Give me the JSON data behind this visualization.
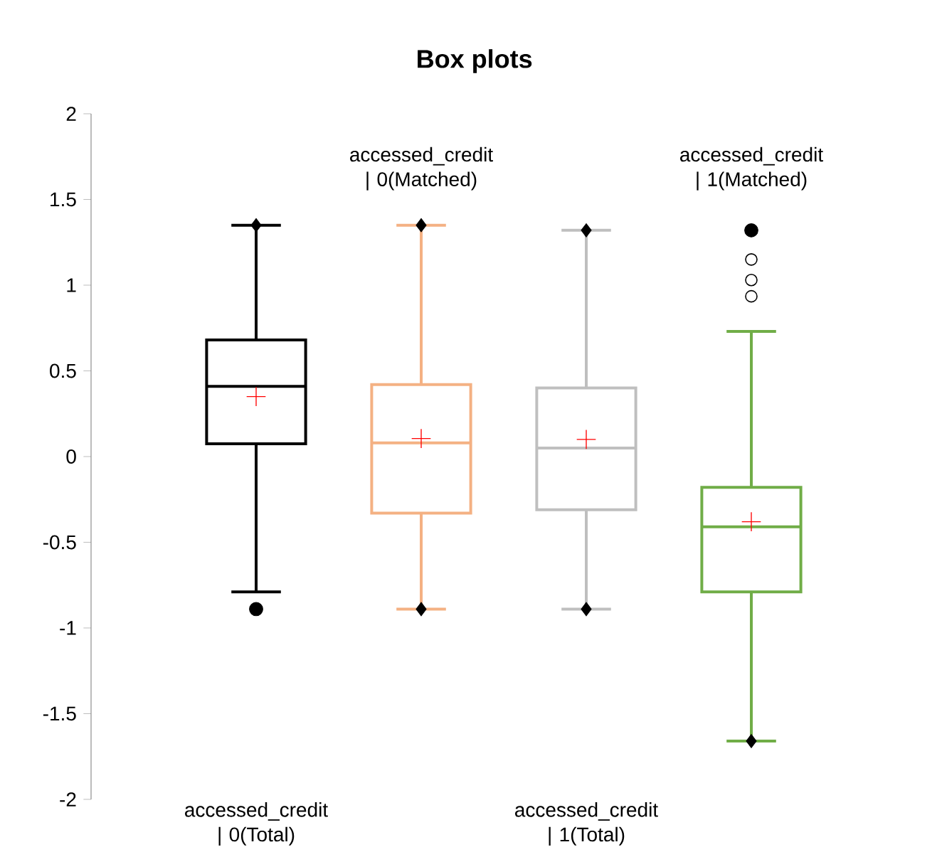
{
  "chart_data": {
    "type": "box",
    "title": "**Box plots**",
    "categories": [
      "accessed_credit | 0(Total)",
      "accessed_credit | 0(Matched)",
      "accessed_credit | 1(Total)",
      "accessed_credit | 1(Matched)"
    ],
    "ylim": [
      -2,
      2
    ],
    "yticks": [
      -2,
      -1.5,
      -1,
      -0.5,
      0,
      0.5,
      1,
      1.5,
      2
    ],
    "grid": false,
    "colors": [
      "#000000",
      "#f4b183",
      "#bfbfbf",
      "#70ad47"
    ],
    "boxes": [
      {
        "low": -0.79,
        "q1": 0.075,
        "median": 0.41,
        "q3": 0.68,
        "high": 1.35,
        "mean": 0.35
      },
      {
        "low": -0.89,
        "q1": -0.33,
        "median": 0.08,
        "q3": 0.42,
        "high": 1.35,
        "mean": 0.105
      },
      {
        "low": -0.89,
        "q1": -0.31,
        "median": 0.05,
        "q3": 0.4,
        "high": 1.32,
        "mean": 0.1
      },
      {
        "low": -1.66,
        "q1": -0.79,
        "median": -0.41,
        "q3": -0.18,
        "high": 0.73,
        "mean": -0.38,
        "outliers": [
          1.15,
          1.03,
          0.935
        ]
      }
    ],
    "series": [
      {
        "type": "scatter",
        "marker": "diamond",
        "color": "#000000",
        "values": [
          1.35,
          1.35,
          1.32,
          null
        ]
      },
      {
        "type": "scatter",
        "marker": "diamond",
        "color": "#000000",
        "values": [
          null,
          -0.89,
          -0.89,
          -1.66
        ]
      },
      {
        "type": "scatter",
        "marker": "circle",
        "color": "#000000",
        "values": [
          -0.89,
          null,
          null,
          1.32
        ]
      }
    ]
  }
}
